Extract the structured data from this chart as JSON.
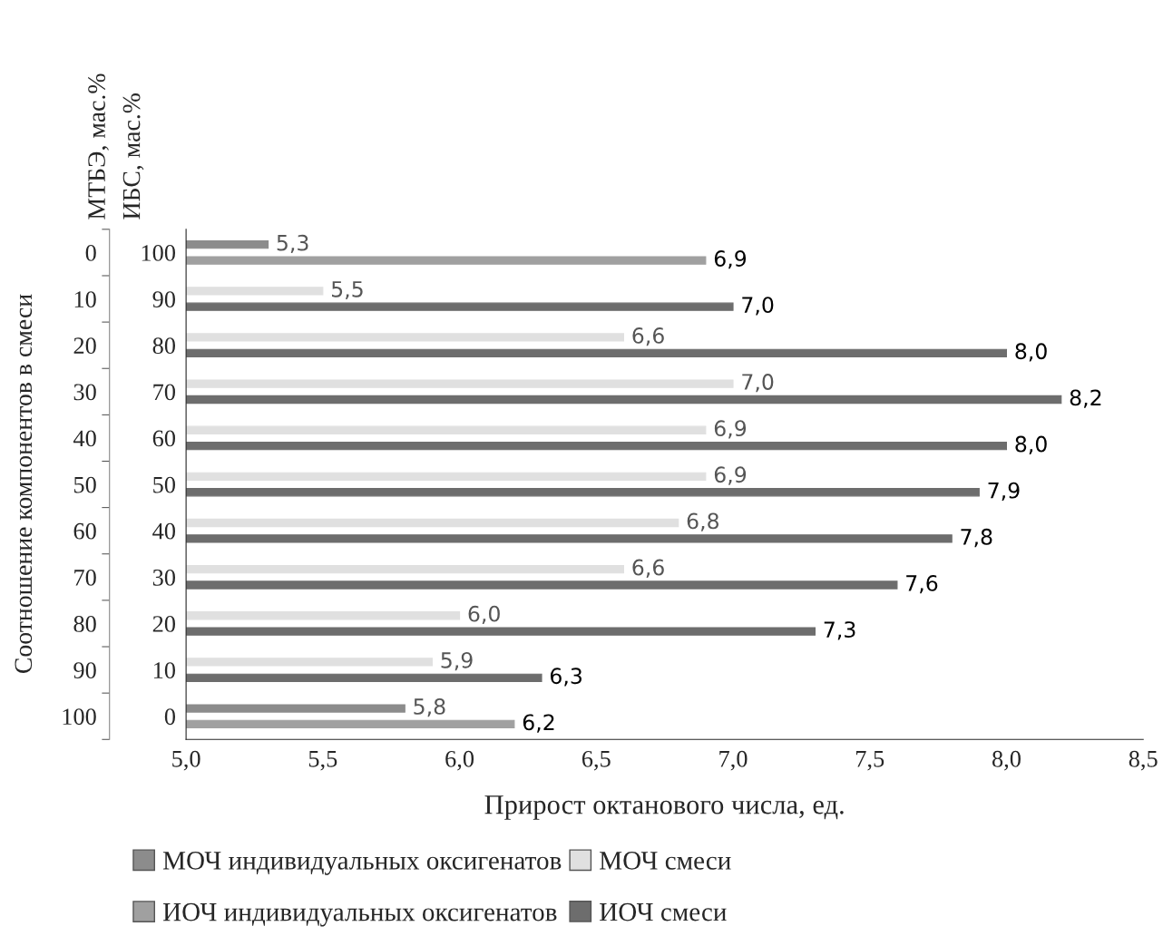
{
  "chart_data": {
    "type": "bar",
    "orientation": "horizontal",
    "xlabel": "Прирост октанового числа, ед.",
    "ylabel": "Соотношение компонентов в смеси",
    "categories": [
      "100",
      "90",
      "80",
      "70",
      "60",
      "50",
      "40",
      "30",
      "20",
      "10",
      "0"
    ],
    "y2_categories": [
      "0",
      "10",
      "20",
      "30",
      "40",
      "50",
      "60",
      "70",
      "80",
      "90",
      "100"
    ],
    "annotations": [
      "ИБС, мас.%",
      "МТБЭ, мас.%"
    ],
    "series": [
      {
        "name": "МОЧ индивидуальных оксигенатов",
        "color": "#8c8c8c",
        "values": [
          5.3,
          null,
          null,
          null,
          null,
          null,
          null,
          null,
          null,
          null,
          5.8
        ],
        "value_labels": [
          "5,3",
          null,
          null,
          null,
          null,
          null,
          null,
          null,
          null,
          null,
          "5,8"
        ]
      },
      {
        "name": "МОЧ смеси",
        "color": "#e0e0e0",
        "values": [
          null,
          5.5,
          6.6,
          7.0,
          6.9,
          6.9,
          6.8,
          6.6,
          6.0,
          5.9,
          null
        ],
        "value_labels": [
          null,
          "5,5",
          "6,6",
          "7,0",
          "6,9",
          "6,9",
          "6,8",
          "6,6",
          "6,0",
          "5,9",
          null
        ]
      },
      {
        "name": "ИОЧ индивидуальных оксигенатов",
        "color": "#a0a0a0",
        "values": [
          6.9,
          null,
          null,
          null,
          null,
          null,
          null,
          null,
          null,
          null,
          6.2
        ],
        "value_labels": [
          "6,9",
          null,
          null,
          null,
          null,
          null,
          null,
          null,
          null,
          null,
          "6,2"
        ]
      },
      {
        "name": "ИОЧ смеси",
        "color": "#6d6d6d",
        "values": [
          null,
          7.0,
          8.0,
          8.2,
          8.0,
          7.9,
          7.8,
          7.6,
          7.3,
          6.3,
          null
        ],
        "value_labels": [
          null,
          "7,0",
          "8,0",
          "8,2",
          "8,0",
          "7,9",
          "7,8",
          "7,6",
          "7,3",
          "6,3",
          null
        ]
      }
    ],
    "xlim": [
      5,
      8.5
    ],
    "xticks": [
      {
        "value": 5,
        "label": "5,0"
      },
      {
        "value": 5.5,
        "label": "5,5"
      },
      {
        "value": 6,
        "label": "6,0"
      },
      {
        "value": 6.5,
        "label": "6,5"
      },
      {
        "value": 7,
        "label": "7,0"
      },
      {
        "value": 7.5,
        "label": "7,5"
      },
      {
        "value": 8,
        "label": "8,0"
      },
      {
        "value": 8.5,
        "label": "8,5"
      }
    ],
    "grid": false,
    "legend": "bottom"
  }
}
